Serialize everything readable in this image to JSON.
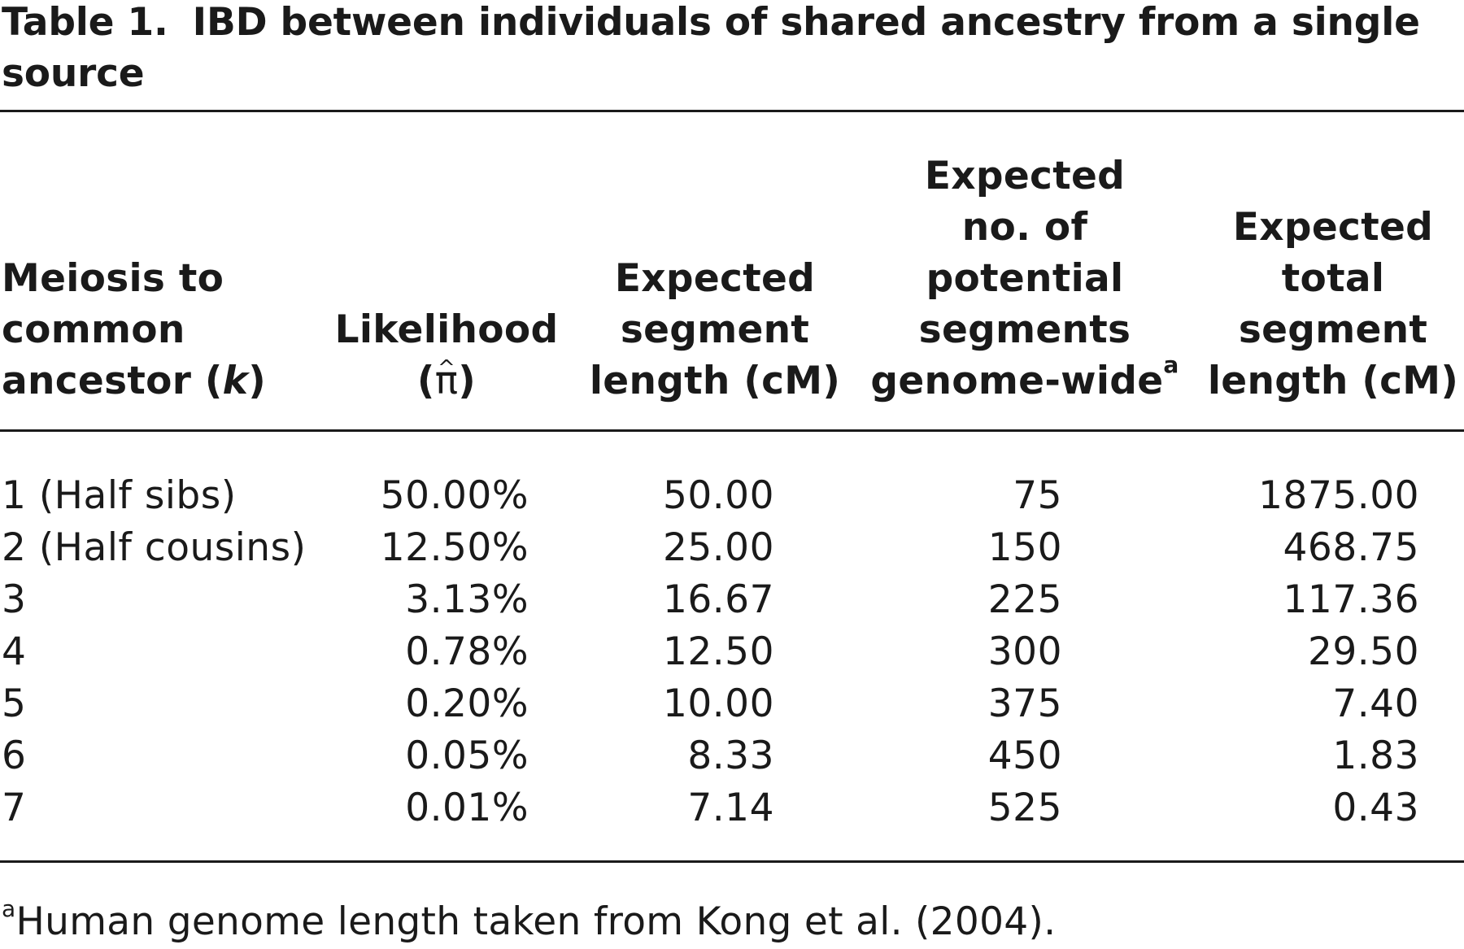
{
  "caption": {
    "label": "Table 1.",
    "title": "IBD between individuals of shared ancestry from a single source"
  },
  "table": {
    "headers": [
      {
        "lines": [
          "Meiosis to",
          "common",
          "ancestor (k)"
        ]
      },
      {
        "lines": [
          "Likelihood",
          "(π̂)"
        ]
      },
      {
        "lines": [
          "Expected",
          "segment",
          "length (cM)"
        ]
      },
      {
        "lines": [
          "Expected",
          "no. of",
          "potential",
          "segments",
          "genome-wide"
        ],
        "sup": "a"
      },
      {
        "lines": [
          "Expected",
          "total",
          "segment",
          "length (cM)"
        ]
      }
    ],
    "header_text": {
      "c1_line1": "Meiosis to",
      "c1_line2": "common",
      "c1_line3a": "ancestor (",
      "c1_italic": "k",
      "c1_line3b": ")",
      "c2_line1": "Likelihood",
      "c2_open": "(",
      "c2_pi": "π",
      "c2_close": ")",
      "c3_line1": "Expected",
      "c3_line2": "segment",
      "c3_line3": "length (cM)",
      "c4_line1": "Expected",
      "c4_line2": "no. of",
      "c4_line3": "potential",
      "c4_line4": "segments",
      "c4_line5": "genome-wide",
      "c4_sup": "a",
      "c5_line1": "Expected",
      "c5_line2": "total",
      "c5_line3": "segment",
      "c5_line4": "length (cM)"
    },
    "rows": [
      {
        "k": "1 (Half sibs)",
        "likelihood": "50.00%",
        "seg_len": "50.00",
        "n_segments": "75",
        "total_len": "1875.00"
      },
      {
        "k": "2 (Half cousins)",
        "likelihood": "12.50%",
        "seg_len": "25.00",
        "n_segments": "150",
        "total_len": "468.75"
      },
      {
        "k": "3",
        "likelihood": "3.13%",
        "seg_len": "16.67",
        "n_segments": "225",
        "total_len": "117.36"
      },
      {
        "k": "4",
        "likelihood": "0.78%",
        "seg_len": "12.50",
        "n_segments": "300",
        "total_len": "29.50"
      },
      {
        "k": "5",
        "likelihood": "0.20%",
        "seg_len": "10.00",
        "n_segments": "375",
        "total_len": "7.40"
      },
      {
        "k": "6",
        "likelihood": "0.05%",
        "seg_len": "8.33",
        "n_segments": "450",
        "total_len": "1.83"
      },
      {
        "k": "7",
        "likelihood": "0.01%",
        "seg_len": "7.14",
        "n_segments": "525",
        "total_len": "0.43"
      }
    ]
  },
  "footnote": {
    "sup": "a",
    "text": "Human genome length taken from Kong et al. (2004)."
  }
}
